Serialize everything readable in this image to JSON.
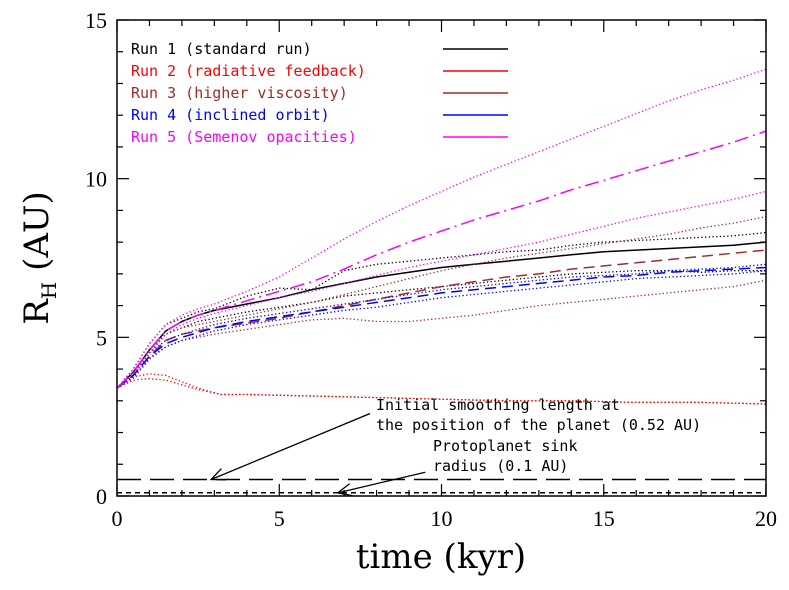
{
  "chart_data": {
    "type": "line",
    "title": "",
    "xlabel": "time (kyr)",
    "ylabel_main": "R",
    "ylabel_sub": "H",
    "ylabel_rest": " (AU)",
    "xlim": [
      0,
      20
    ],
    "ylim": [
      0,
      15
    ],
    "x_ticks": [
      0,
      5,
      10,
      15,
      20
    ],
    "x_tick_labels": [
      "0",
      "5",
      "10",
      "15",
      "20"
    ],
    "y_ticks": [
      0,
      5,
      10,
      15
    ],
    "y_tick_labels": [
      "0",
      "5",
      "10",
      "15"
    ],
    "x_minor_step": 1,
    "y_minor_step": 1,
    "grid": false,
    "legend_position": "top-left",
    "colors": {
      "run1": "#000000",
      "run2": "#ff0000",
      "run3": "#a52a2a",
      "run4": "#0000ff",
      "run5": "#ff00ff"
    },
    "series": [
      {
        "id": "run1",
        "name": "Run 1 (standard run)",
        "color": "#000000",
        "style": "solid",
        "x": [
          0,
          0.5,
          1,
          1.5,
          2,
          2.5,
          3,
          4,
          5,
          6,
          7,
          8,
          9,
          10,
          11,
          12,
          13,
          14,
          15,
          16,
          17,
          18,
          19,
          20
        ],
        "y": [
          3.4,
          3.9,
          4.6,
          5.2,
          5.5,
          5.7,
          5.85,
          6.05,
          6.25,
          6.5,
          6.7,
          6.9,
          7.05,
          7.2,
          7.3,
          7.4,
          7.5,
          7.6,
          7.7,
          7.75,
          7.8,
          7.85,
          7.9,
          8.0
        ]
      },
      {
        "id": "run1_upper",
        "name": "",
        "color": "#000000",
        "style": "dotted",
        "x": [
          0,
          0.5,
          1,
          1.5,
          2,
          2.5,
          3,
          4,
          5,
          6,
          7,
          8,
          9,
          10,
          11,
          12,
          13,
          14,
          15,
          16,
          17,
          18,
          19,
          20
        ],
        "y": [
          3.4,
          4.0,
          4.8,
          5.4,
          5.6,
          5.8,
          5.9,
          6.3,
          6.55,
          6.5,
          7.1,
          7.3,
          7.4,
          7.5,
          7.6,
          7.7,
          7.75,
          7.9,
          8.0,
          8.05,
          8.1,
          8.15,
          8.2,
          8.3
        ]
      },
      {
        "id": "run1_lower",
        "name": "",
        "color": "#000000",
        "style": "dotted",
        "x": [
          0,
          0.5,
          1,
          1.5,
          2,
          2.5,
          3,
          4,
          5,
          6,
          7,
          8,
          9,
          10,
          11,
          12,
          13,
          14,
          15,
          16,
          17,
          18,
          19,
          20
        ],
        "y": [
          3.4,
          3.8,
          4.5,
          5.1,
          5.3,
          5.5,
          5.6,
          5.8,
          5.95,
          6.1,
          6.3,
          6.4,
          6.5,
          6.6,
          6.7,
          6.8,
          6.9,
          7.0,
          7.05,
          7.1,
          7.1,
          7.05,
          7.1,
          7.1
        ]
      },
      {
        "id": "run2",
        "name": "Run 2 (radiative feedback)",
        "color": "#ff0000",
        "style": "dotted",
        "x": [
          0,
          0.5,
          1,
          1.5,
          2,
          2.5,
          3,
          3.2,
          4,
          6,
          8,
          10,
          12,
          14,
          16,
          18,
          20
        ],
        "y": [
          3.4,
          3.75,
          3.85,
          3.8,
          3.6,
          3.4,
          3.25,
          3.2,
          3.2,
          3.15,
          3.1,
          3.05,
          3.0,
          3.0,
          2.95,
          2.95,
          2.9
        ]
      },
      {
        "id": "run2_b",
        "name": "",
        "color": "#ff0000",
        "style": "dotted",
        "x": [
          0,
          0.5,
          1,
          1.5,
          2,
          2.5,
          3,
          3.2,
          4,
          6,
          8,
          10,
          12,
          14,
          16,
          18,
          20
        ],
        "y": [
          3.4,
          3.65,
          3.7,
          3.65,
          3.5,
          3.35,
          3.25,
          3.2,
          3.2,
          3.15,
          3.1,
          3.05,
          3.0,
          3.0,
          2.95,
          2.95,
          2.9
        ]
      },
      {
        "id": "run3",
        "name": "Run 3 (higher viscosity)",
        "color": "#a52a2a",
        "style": "dashed",
        "x": [
          0,
          0.5,
          1,
          1.5,
          2,
          2.5,
          3,
          4,
          5,
          6,
          7,
          8,
          9,
          10,
          11,
          12,
          13,
          14,
          15,
          16,
          17,
          18,
          19,
          20
        ],
        "y": [
          3.4,
          3.8,
          4.4,
          4.9,
          5.1,
          5.2,
          5.3,
          5.45,
          5.6,
          5.8,
          6.0,
          6.2,
          6.4,
          6.6,
          6.75,
          6.9,
          7.0,
          7.15,
          7.25,
          7.35,
          7.45,
          7.55,
          7.65,
          7.75
        ]
      },
      {
        "id": "run3_upper",
        "name": "",
        "color": "#a52a2a",
        "style": "dotted",
        "x": [
          0,
          0.5,
          1,
          1.5,
          2,
          2.5,
          3,
          4,
          5,
          6,
          7,
          8,
          9,
          10,
          11,
          12,
          13,
          14,
          15,
          16,
          17,
          18,
          19,
          20
        ],
        "y": [
          3.4,
          3.9,
          4.6,
          5.1,
          5.3,
          5.4,
          5.5,
          5.7,
          5.9,
          6.1,
          6.35,
          6.6,
          6.85,
          7.1,
          7.3,
          7.5,
          7.65,
          7.8,
          7.95,
          8.1,
          8.25,
          8.45,
          8.6,
          8.8
        ]
      },
      {
        "id": "run3_lower",
        "name": "",
        "color": "#a52a2a",
        "style": "dotted",
        "x": [
          0,
          0.5,
          1,
          1.5,
          2,
          2.5,
          3,
          4,
          5,
          6,
          7,
          8,
          9,
          10,
          11,
          12,
          13,
          14,
          15,
          16,
          17,
          18,
          19,
          20
        ],
        "y": [
          3.4,
          3.7,
          4.3,
          4.7,
          4.9,
          5.0,
          5.1,
          5.25,
          5.4,
          5.55,
          5.6,
          5.5,
          5.5,
          5.6,
          5.7,
          5.85,
          6.0,
          6.1,
          6.2,
          6.3,
          6.4,
          6.5,
          6.6,
          6.8
        ]
      },
      {
        "id": "run4",
        "name": "Run 4 (inclined orbit)",
        "color": "#0000ff",
        "style": "dashed",
        "x": [
          0,
          0.5,
          1,
          1.5,
          2,
          2.5,
          3,
          4,
          5,
          6,
          7,
          8,
          9,
          10,
          11,
          12,
          13,
          14,
          15,
          16,
          17,
          18,
          19,
          20
        ],
        "y": [
          3.4,
          3.8,
          4.4,
          4.8,
          5.0,
          5.15,
          5.3,
          5.5,
          5.65,
          5.8,
          5.95,
          6.1,
          6.25,
          6.4,
          6.5,
          6.6,
          6.7,
          6.8,
          6.9,
          6.95,
          7.05,
          7.1,
          7.15,
          7.2
        ]
      },
      {
        "id": "run4_upper",
        "name": "",
        "color": "#0000ff",
        "style": "dotted",
        "x": [
          0,
          0.5,
          1,
          1.5,
          2,
          2.5,
          3,
          4,
          5,
          6,
          7,
          8,
          9,
          10,
          11,
          12,
          13,
          14,
          15,
          16,
          17,
          18,
          19,
          20
        ],
        "y": [
          3.4,
          3.85,
          4.5,
          4.9,
          5.1,
          5.25,
          5.4,
          5.6,
          5.75,
          5.9,
          6.05,
          6.2,
          6.35,
          6.5,
          6.6,
          6.7,
          6.8,
          6.9,
          6.95,
          7.0,
          7.1,
          7.15,
          7.2,
          7.3
        ]
      },
      {
        "id": "run4_lower",
        "name": "",
        "color": "#0000ff",
        "style": "dotted",
        "x": [
          0,
          0.5,
          1,
          1.5,
          2,
          2.5,
          3,
          4,
          5,
          6,
          7,
          8,
          9,
          10,
          11,
          12,
          13,
          14,
          15,
          16,
          17,
          18,
          19,
          20
        ],
        "y": [
          3.4,
          3.75,
          4.35,
          4.7,
          4.9,
          5.05,
          5.2,
          5.4,
          5.55,
          5.7,
          5.85,
          5.95,
          6.1,
          6.25,
          6.35,
          6.45,
          6.55,
          6.65,
          6.75,
          6.85,
          6.9,
          6.95,
          7.0,
          7.1
        ]
      },
      {
        "id": "run5",
        "name": "Run 5 (Semenov opacities)",
        "color": "#ff00ff",
        "style": "dashdot",
        "x": [
          0,
          0.5,
          1,
          1.5,
          2,
          2.5,
          3,
          4,
          5,
          6,
          7,
          8,
          9,
          10,
          11,
          12,
          13,
          14,
          15,
          16,
          17,
          18,
          19,
          20
        ],
        "y": [
          3.4,
          3.9,
          4.6,
          5.2,
          5.5,
          5.7,
          5.85,
          6.15,
          6.45,
          6.75,
          7.15,
          7.6,
          8.0,
          8.35,
          8.7,
          9.0,
          9.3,
          9.65,
          9.95,
          10.25,
          10.55,
          10.85,
          11.15,
          11.5
        ]
      },
      {
        "id": "run5_upper",
        "name": "",
        "color": "#ff00ff",
        "style": "dotted",
        "x": [
          0,
          0.5,
          1,
          1.5,
          2,
          2.5,
          3,
          4,
          5,
          6,
          7,
          8,
          9,
          10,
          11,
          12,
          13,
          14,
          15,
          16,
          17,
          18,
          19,
          20
        ],
        "y": [
          3.4,
          4.0,
          4.8,
          5.4,
          5.7,
          5.9,
          6.05,
          6.45,
          6.9,
          7.5,
          8.1,
          8.65,
          9.15,
          9.6,
          10.05,
          10.45,
          10.85,
          11.25,
          11.65,
          12.05,
          12.45,
          12.8,
          13.1,
          13.45
        ]
      },
      {
        "id": "run5_lower",
        "name": "",
        "color": "#ff00ff",
        "style": "dotted",
        "x": [
          0,
          0.5,
          1,
          1.5,
          2,
          2.5,
          3,
          4,
          5,
          6,
          7,
          8,
          9,
          10,
          11,
          12,
          13,
          14,
          15,
          16,
          17,
          18,
          19,
          20
        ],
        "y": [
          3.4,
          3.85,
          4.5,
          5.1,
          5.4,
          5.6,
          5.75,
          6.0,
          6.25,
          6.45,
          6.7,
          6.95,
          7.2,
          7.4,
          7.6,
          7.8,
          8.0,
          8.25,
          8.5,
          8.75,
          8.95,
          9.15,
          9.35,
          9.6
        ]
      },
      {
        "id": "smoothing_length",
        "name": "",
        "color": "#000000",
        "style": "longdash",
        "x": [
          0,
          20
        ],
        "y": [
          0.52,
          0.52
        ]
      },
      {
        "id": "sink_radius",
        "name": "",
        "color": "#000000",
        "style": "shortdash",
        "x": [
          0,
          20
        ],
        "y": [
          0.1,
          0.1
        ]
      }
    ],
    "legend": [
      {
        "label": "Run 1 (standard run)",
        "color": "#000000"
      },
      {
        "label": "Run 2 (radiative feedback)",
        "color": "#ff0000"
      },
      {
        "label": "Run 3 (higher viscosity)",
        "color": "#a52a2a"
      },
      {
        "label": "Run 4 (inclined orbit)",
        "color": "#0000ff"
      },
      {
        "label": "Run 5 (Semenov opacities)",
        "color": "#ff00ff"
      }
    ],
    "annotations": [
      {
        "lines": [
          "Initial smoothing length at",
          "the position of the planet (0.52 AU)"
        ],
        "arrow_from": [
          7.8,
          2.6
        ],
        "arrow_to": [
          2.9,
          0.52
        ]
      },
      {
        "lines": [
          "Protoplanet sink",
          "radius (0.1 AU)"
        ],
        "arrow_from": [
          9.5,
          0.75
        ],
        "arrow_to": [
          6.8,
          0.1
        ]
      }
    ]
  }
}
